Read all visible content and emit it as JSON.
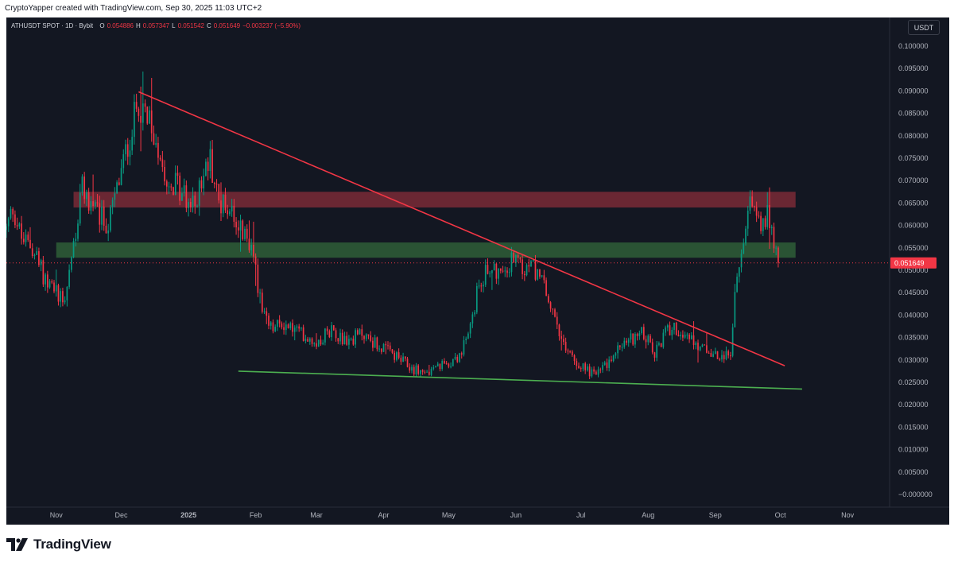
{
  "header": {
    "credit": "CryptoYapper created with TradingView.com, Sep 30, 2025 11:03 UTC+2"
  },
  "legend": {
    "symbol": "ATHUSDT SPOT · 1D · Bybit",
    "o_label": "O",
    "o_value": "0.054886",
    "h_label": "H",
    "h_value": "0.057347",
    "l_label": "L",
    "l_value": "0.051542",
    "c_label": "C",
    "c_value": "0.051649",
    "change": "−0.003237 (−5.90%)"
  },
  "currency_button": "USDT",
  "brand": {
    "name": "TradingView"
  },
  "colors": {
    "background": "#131722",
    "up": "#089981",
    "down": "#f23645",
    "neutral": "#a6a8ad",
    "trendline": "#f23645",
    "support": "#4caf50",
    "resistance_zone": "#7a2a36",
    "support_zone": "#2e5a36",
    "axis_text": "#b2b5be"
  },
  "chart_data": {
    "type": "candlestick",
    "ylim": [
      -1e-06,
      0.1
    ],
    "y_ticks": [
      "0.100000",
      "0.095000",
      "0.090000",
      "0.085000",
      "0.080000",
      "0.075000",
      "0.070000",
      "0.065000",
      "0.060000",
      "0.055000",
      "0.050000",
      "0.045000",
      "0.040000",
      "0.035000",
      "0.030000",
      "0.025000",
      "0.020000",
      "0.015000",
      "0.010000",
      "0.005000",
      "−0.000000"
    ],
    "y_tick_values": [
      0.1,
      0.095,
      0.09,
      0.085,
      0.08,
      0.075,
      0.07,
      0.065,
      0.06,
      0.055,
      0.05,
      0.045,
      0.04,
      0.035,
      0.03,
      0.025,
      0.02,
      0.015,
      0.01,
      0.005,
      0
    ],
    "x_ticks": [
      {
        "label": "Nov",
        "date": "2024-11-01",
        "bold": false
      },
      {
        "label": "Dec",
        "date": "2024-12-01",
        "bold": false
      },
      {
        "label": "2025",
        "date": "2025-01-01",
        "bold": true
      },
      {
        "label": "Feb",
        "date": "2025-02-01",
        "bold": false
      },
      {
        "label": "Mar",
        "date": "2025-03-01",
        "bold": false
      },
      {
        "label": "Apr",
        "date": "2025-04-01",
        "bold": false
      },
      {
        "label": "May",
        "date": "2025-05-01",
        "bold": false
      },
      {
        "label": "Jun",
        "date": "2025-06-01",
        "bold": false
      },
      {
        "label": "Jul",
        "date": "2025-07-01",
        "bold": false
      },
      {
        "label": "Aug",
        "date": "2025-08-01",
        "bold": false
      },
      {
        "label": "Sep",
        "date": "2025-09-01",
        "bold": false
      },
      {
        "label": "Oct",
        "date": "2025-10-01",
        "bold": false
      },
      {
        "label": "Nov",
        "date": "2025-11-01",
        "bold": false
      }
    ],
    "date_range": [
      "2024-10-09",
      "2025-11-20"
    ],
    "candle_range": [
      "2024-10-09",
      "2025-09-30"
    ],
    "last_price": "0.051649",
    "last_price_value": 0.051649,
    "close_path": [
      [
        "2024-10-09",
        0.059
      ],
      [
        "2024-10-12",
        0.064
      ],
      [
        "2024-10-16",
        0.057
      ],
      [
        "2024-10-21",
        0.055
      ],
      [
        "2024-10-26",
        0.049
      ],
      [
        "2024-10-30",
        0.046
      ],
      [
        "2024-11-05",
        0.044
      ],
      [
        "2024-11-09",
        0.056
      ],
      [
        "2024-11-13",
        0.068
      ],
      [
        "2024-11-19",
        0.063
      ],
      [
        "2024-11-25",
        0.06
      ],
      [
        "2024-11-30",
        0.07
      ],
      [
        "2024-12-05",
        0.08
      ],
      [
        "2024-12-09",
        0.088
      ],
      [
        "2024-12-13",
        0.083
      ],
      [
        "2024-12-18",
        0.078
      ],
      [
        "2024-12-22",
        0.071
      ],
      [
        "2024-12-28",
        0.068
      ],
      [
        "2025-01-03",
        0.064
      ],
      [
        "2025-01-07",
        0.07
      ],
      [
        "2025-01-11",
        0.075
      ],
      [
        "2025-01-15",
        0.065
      ],
      [
        "2025-01-21",
        0.064
      ],
      [
        "2025-01-26",
        0.058
      ],
      [
        "2025-01-31",
        0.054
      ],
      [
        "2025-02-04",
        0.04
      ],
      [
        "2025-02-08",
        0.037
      ],
      [
        "2025-02-14",
        0.038
      ],
      [
        "2025-02-22",
        0.036
      ],
      [
        "2025-03-01",
        0.034
      ],
      [
        "2025-03-08",
        0.037
      ],
      [
        "2025-03-15",
        0.034
      ],
      [
        "2025-03-22",
        0.036
      ],
      [
        "2025-03-30",
        0.033
      ],
      [
        "2025-04-06",
        0.031
      ],
      [
        "2025-04-14",
        0.028
      ],
      [
        "2025-04-22",
        0.027
      ],
      [
        "2025-04-29",
        0.029
      ],
      [
        "2025-05-06",
        0.031
      ],
      [
        "2025-05-10",
        0.035
      ],
      [
        "2025-05-15",
        0.047
      ],
      [
        "2025-05-20",
        0.051
      ],
      [
        "2025-05-26",
        0.049
      ],
      [
        "2025-05-30",
        0.052
      ],
      [
        "2025-06-04",
        0.05
      ],
      [
        "2025-06-09",
        0.051
      ],
      [
        "2025-06-14",
        0.046
      ],
      [
        "2025-06-18",
        0.04
      ],
      [
        "2025-06-22",
        0.034
      ],
      [
        "2025-06-28",
        0.03
      ],
      [
        "2025-07-03",
        0.028
      ],
      [
        "2025-07-08",
        0.027
      ],
      [
        "2025-07-13",
        0.029
      ],
      [
        "2025-07-19",
        0.033
      ],
      [
        "2025-07-25",
        0.035
      ],
      [
        "2025-07-30",
        0.036
      ],
      [
        "2025-08-04",
        0.031
      ],
      [
        "2025-08-09",
        0.036
      ],
      [
        "2025-08-13",
        0.038
      ],
      [
        "2025-08-17",
        0.034
      ],
      [
        "2025-08-21",
        0.035
      ],
      [
        "2025-08-25",
        0.033
      ],
      [
        "2025-08-31",
        0.031
      ],
      [
        "2025-09-05",
        0.03
      ],
      [
        "2025-09-08",
        0.032
      ],
      [
        "2025-09-10",
        0.045
      ],
      [
        "2025-09-13",
        0.052
      ],
      [
        "2025-09-16",
        0.063
      ],
      [
        "2025-09-19",
        0.065
      ],
      [
        "2025-09-22",
        0.061
      ],
      [
        "2025-09-25",
        0.063
      ],
      [
        "2025-09-28",
        0.057
      ],
      [
        "2025-09-29",
        0.0549
      ],
      [
        "2025-09-30",
        0.051649
      ]
    ],
    "annotations": {
      "resistance_zone": {
        "from": "2024-11-09",
        "to": "2025-10-08",
        "low": 0.064,
        "high": 0.0675
      },
      "support_zone": {
        "from": "2024-11-01",
        "to": "2025-10-08",
        "low": 0.0528,
        "high": 0.0562
      },
      "descending_trendline": {
        "from": [
          "2024-12-09",
          0.0898
        ],
        "to": [
          "2025-10-03",
          0.0287
        ]
      },
      "support_line": {
        "from": [
          "2025-01-24",
          0.0275
        ],
        "to": [
          "2025-10-11",
          0.0235
        ]
      }
    }
  }
}
